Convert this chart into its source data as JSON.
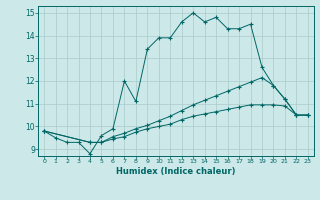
{
  "title": "",
  "xlabel": "Humidex (Indice chaleur)",
  "ylabel": "",
  "bg_color": "#cce8e8",
  "line_color": "#006666",
  "grid_color": "#aacccc",
  "xlim": [
    -0.5,
    23.5
  ],
  "ylim": [
    8.7,
    15.3
  ],
  "xticks": [
    0,
    1,
    2,
    3,
    4,
    5,
    6,
    7,
    8,
    9,
    10,
    11,
    12,
    13,
    14,
    15,
    16,
    17,
    18,
    19,
    20,
    21,
    22,
    23
  ],
  "yticks": [
    9,
    10,
    11,
    12,
    13,
    14,
    15
  ],
  "series": [
    {
      "x": [
        0,
        1,
        2,
        3,
        4,
        5,
        6,
        7,
        8,
        9,
        10,
        11,
        12,
        13,
        14,
        15,
        16,
        17,
        18,
        19,
        20,
        21,
        22,
        23
      ],
      "y": [
        9.8,
        9.5,
        9.3,
        9.3,
        8.8,
        9.6,
        9.9,
        12.0,
        11.1,
        13.4,
        13.9,
        13.9,
        14.6,
        15.0,
        14.6,
        14.8,
        14.3,
        14.3,
        14.5,
        12.6,
        11.8,
        11.2,
        10.5,
        10.5
      ]
    },
    {
      "x": [
        0,
        4,
        5,
        6,
        7,
        8,
        9,
        10,
        11,
        12,
        13,
        14,
        15,
        16,
        17,
        18,
        19,
        20,
        21,
        22,
        23
      ],
      "y": [
        9.8,
        9.3,
        9.3,
        9.55,
        9.7,
        9.9,
        10.05,
        10.25,
        10.45,
        10.7,
        10.95,
        11.15,
        11.35,
        11.55,
        11.75,
        11.95,
        12.15,
        11.8,
        11.2,
        10.5,
        10.5
      ]
    },
    {
      "x": [
        0,
        4,
        5,
        6,
        7,
        8,
        9,
        10,
        11,
        12,
        13,
        14,
        15,
        16,
        17,
        18,
        19,
        20,
        21,
        22,
        23
      ],
      "y": [
        9.8,
        9.3,
        9.3,
        9.45,
        9.55,
        9.75,
        9.9,
        10.0,
        10.1,
        10.3,
        10.45,
        10.55,
        10.65,
        10.75,
        10.85,
        10.95,
        10.95,
        10.95,
        10.9,
        10.5,
        10.5
      ]
    }
  ]
}
